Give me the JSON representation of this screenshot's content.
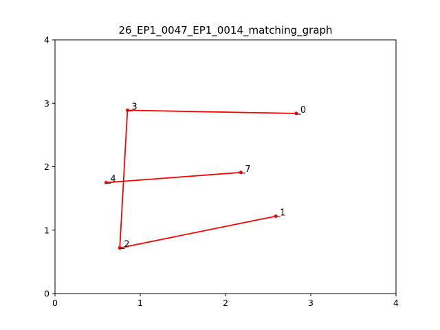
{
  "chart_data": {
    "type": "scatter",
    "title": "26_EP1_0047_EP1_0014_matching_graph",
    "xlabel": "",
    "ylabel": "",
    "xlim": [
      0,
      4
    ],
    "ylim": [
      0,
      4
    ],
    "xticks": [
      "0",
      "1",
      "2",
      "3",
      "4"
    ],
    "yticks": [
      "0",
      "1",
      "2",
      "3",
      "4"
    ],
    "grid": false,
    "color": "#ff0000",
    "points": [
      {
        "label": "0",
        "x": 2.83,
        "y": 2.84
      },
      {
        "label": "1",
        "x": 2.59,
        "y": 1.22
      },
      {
        "label": "2",
        "x": 0.76,
        "y": 0.72
      },
      {
        "label": "3",
        "x": 0.85,
        "y": 2.89
      },
      {
        "label": "4",
        "x": 0.6,
        "y": 1.75
      },
      {
        "label": "7",
        "x": 2.18,
        "y": 1.91
      }
    ],
    "edges": [
      [
        "3",
        "0"
      ],
      [
        "3",
        "2"
      ],
      [
        "2",
        "1"
      ],
      [
        "4",
        "7"
      ]
    ]
  }
}
